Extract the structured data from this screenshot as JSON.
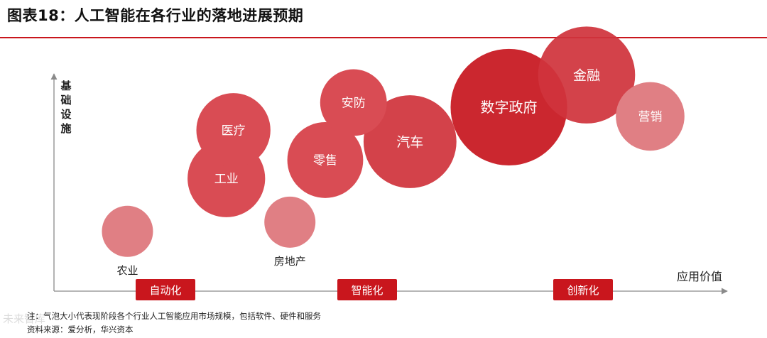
{
  "title": "图表18：人工智能在各行业的落地进展预期",
  "colors": {
    "accent": "#c9161d",
    "bubble_dark": "#c7171f",
    "bubble_mid": "#d0343c",
    "bubble_light": "#d94c54",
    "bubble_pale": "#e07f84",
    "axis": "#8a8a8a",
    "label_dark": "#222222"
  },
  "chart_data": {
    "type": "bubble",
    "title": "",
    "xlabel": "应用价值",
    "ylabel": "基础设施",
    "stages": [
      "自动化",
      "智能化",
      "创新化"
    ],
    "points": [
      {
        "name": "农业",
        "x": 1.0,
        "y": 2.6,
        "size": 1.0,
        "label_position": "below"
      },
      {
        "name": "房地产",
        "x": 3.3,
        "y": 3.0,
        "size": 1.0,
        "label_position": "below"
      },
      {
        "name": "工业",
        "x": 2.4,
        "y": 4.9,
        "size": 2.3,
        "label_position": "inside"
      },
      {
        "name": "医疗",
        "x": 2.5,
        "y": 7.0,
        "size": 2.1,
        "label_position": "inside"
      },
      {
        "name": "零售",
        "x": 3.8,
        "y": 5.7,
        "size": 2.2,
        "label_position": "inside"
      },
      {
        "name": "安防",
        "x": 4.2,
        "y": 8.2,
        "size": 1.7,
        "label_position": "inside"
      },
      {
        "name": "汽车",
        "x": 5.0,
        "y": 6.5,
        "size": 3.3,
        "label_position": "inside"
      },
      {
        "name": "数字政府",
        "x": 6.4,
        "y": 8.0,
        "size": 5.2,
        "label_position": "inside"
      },
      {
        "name": "金融",
        "x": 7.5,
        "y": 9.4,
        "size": 3.6,
        "label_position": "inside"
      },
      {
        "name": "营销",
        "x": 8.4,
        "y": 7.6,
        "size": 1.8,
        "label_position": "inside"
      }
    ]
  },
  "notes": {
    "note": "注：气泡大小代表现阶段各个行业人工智能应用市场规模，包括软件、硬件和服务",
    "source": "资料来源：爱分析，华兴资本"
  },
  "watermark": "未来智库"
}
